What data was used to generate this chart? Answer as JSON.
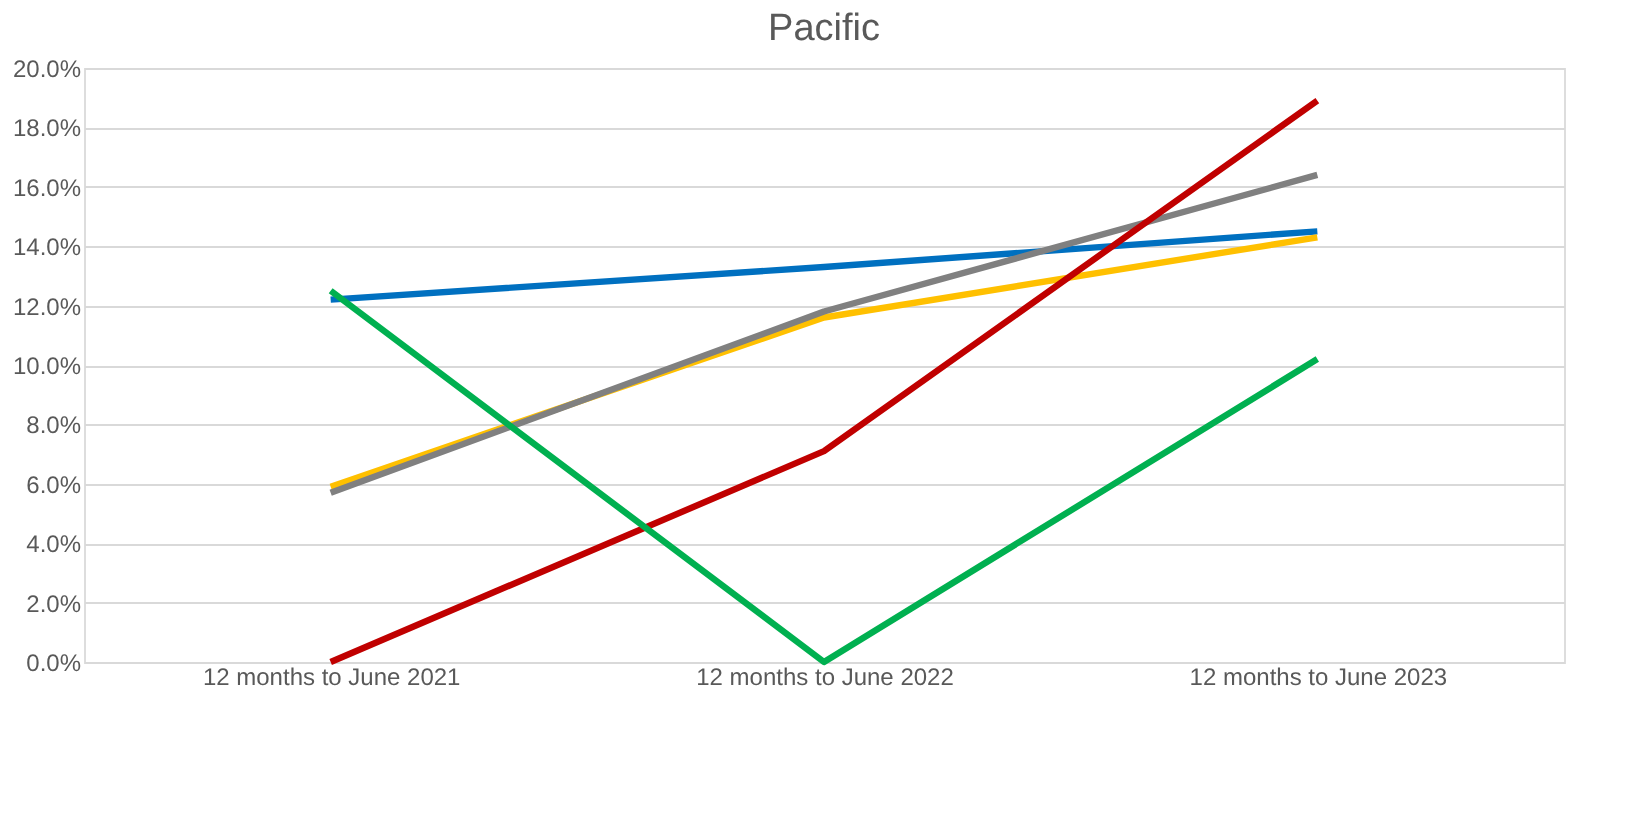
{
  "chart_data": {
    "type": "line",
    "title": "Pacific",
    "categories": [
      "12 months to June 2021",
      "12 months to June 2022",
      "12 months to June 2023"
    ],
    "series": [
      {
        "color": "#0070c0",
        "values": [
          12.2,
          13.3,
          14.5
        ]
      },
      {
        "color": "#ffc000",
        "values": [
          5.9,
          11.6,
          14.3
        ]
      },
      {
        "color": "#808080",
        "values": [
          5.7,
          11.8,
          16.4
        ]
      },
      {
        "color": "#c00000",
        "values": [
          0,
          7.1,
          18.9
        ]
      },
      {
        "color": "#00b050",
        "values": [
          12.5,
          0,
          10.2
        ]
      }
    ],
    "ylim": [
      0,
      20
    ],
    "yticks": [
      {
        "value": 0,
        "label": "0.0%"
      },
      {
        "value": 2,
        "label": "2.0%"
      },
      {
        "value": 4,
        "label": "4.0%"
      },
      {
        "value": 6,
        "label": "6.0%"
      },
      {
        "value": 8,
        "label": "8.0%"
      },
      {
        "value": 10,
        "label": "10.0%"
      },
      {
        "value": 12,
        "label": "12.0%"
      },
      {
        "value": 14,
        "label": "14.0%"
      },
      {
        "value": 16,
        "label": "16.0%"
      },
      {
        "value": 18,
        "label": "18.0%"
      },
      {
        "value": 20,
        "label": "20.0%"
      }
    ],
    "grid": "y",
    "legend": false,
    "marker": "none",
    "line_style": "solid"
  }
}
